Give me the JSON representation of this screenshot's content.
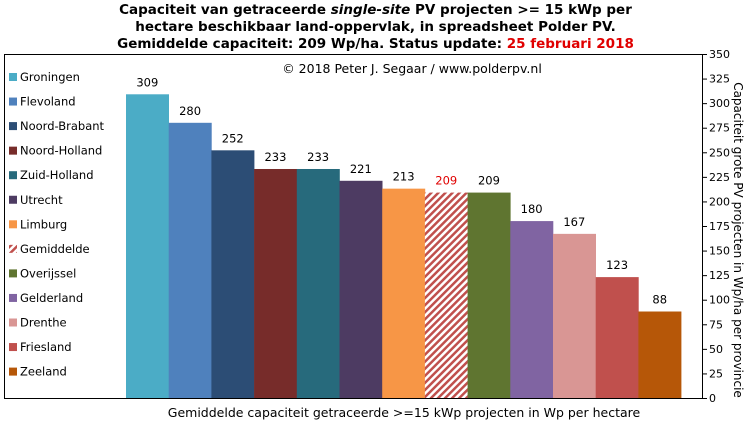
{
  "title": {
    "line1_a": "Capaciteit van getraceerde ",
    "line1_em": "single-site",
    "line1_b": " PV projecten >= 15 kWp per",
    "line2": "hectare beschikbaar land-oppervlak, in spreadsheet Polder PV.",
    "line3": "Gemiddelde capaciteit: 209 Wp/ha. Status update: ",
    "line3_date": "25 februari 2018"
  },
  "copyright": "© 2018 Peter J. Segaar / www.polderpv.nl",
  "chart_data": {
    "type": "bar",
    "categories": [
      "Groningen",
      "Flevoland",
      "Noord-Brabant",
      "Noord-Holland",
      "Zuid-Holland",
      "Utrecht",
      "Limburg",
      "Gemiddelde",
      "Overijssel",
      "Gelderland",
      "Drenthe",
      "Friesland",
      "Zeeland"
    ],
    "values": [
      309,
      280,
      252,
      233,
      233,
      221,
      213,
      209,
      209,
      180,
      167,
      123,
      88
    ],
    "colors": [
      "#4bacc6",
      "#4f81bd",
      "#2c4d75",
      "#772c2a",
      "#276a7c",
      "#4d3b62",
      "#f79646",
      "#c0504d",
      "#5f7530",
      "#8064a2",
      "#d99694",
      "#c0504d",
      "#b65708"
    ],
    "hatched_category": "Gemiddelde",
    "highlight_label_color": "#e00000",
    "xlabel": "Gemiddelde capaciteit getraceerde >=15 kWp projecten in Wp per hectare",
    "ylabel": "Capaciteit grote PV projecten in Wp/ha per provincie",
    "ylim": [
      0,
      350
    ],
    "yticks": [
      0,
      25,
      50,
      75,
      100,
      125,
      150,
      175,
      200,
      225,
      250,
      275,
      300,
      325,
      350
    ],
    "legend_position": "left",
    "grid": false
  }
}
